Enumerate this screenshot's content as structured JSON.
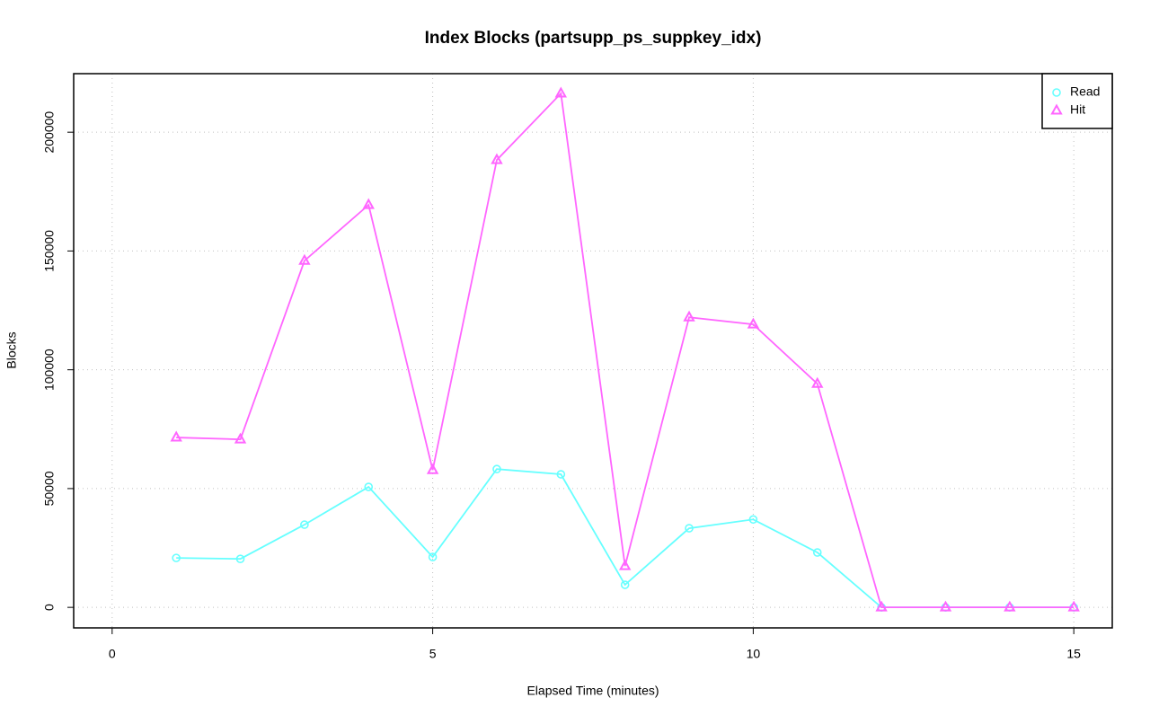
{
  "chart_data": {
    "type": "line",
    "title": "Index Blocks (partsupp_ps_suppkey_idx)",
    "x_label": "Elapsed Time (minutes)",
    "y_label": "Blocks",
    "x": [
      1,
      2,
      3,
      4,
      5,
      6,
      7,
      8,
      9,
      10,
      11,
      12,
      13,
      14,
      15
    ],
    "series": [
      {
        "name": "Read",
        "color": "#66ffff",
        "marker": "circle",
        "values": [
          20800,
          20400,
          34800,
          50700,
          21200,
          58200,
          56000,
          9500,
          33300,
          37000,
          23100,
          0,
          0,
          0,
          0
        ]
      },
      {
        "name": "Hit",
        "color": "#ff66ff",
        "marker": "triangle",
        "values": [
          71500,
          70700,
          145900,
          169400,
          57800,
          188300,
          216300,
          17400,
          122100,
          119100,
          94100,
          0,
          0,
          0,
          0
        ]
      }
    ],
    "xlim": [
      -0.6,
      15.6
    ],
    "xticks": [
      0,
      5,
      10,
      15
    ],
    "ylim": [
      -8640,
      224640
    ],
    "yticks": [
      0,
      50000,
      100000,
      150000,
      200000
    ],
    "grid": true,
    "legend": "top-right"
  }
}
